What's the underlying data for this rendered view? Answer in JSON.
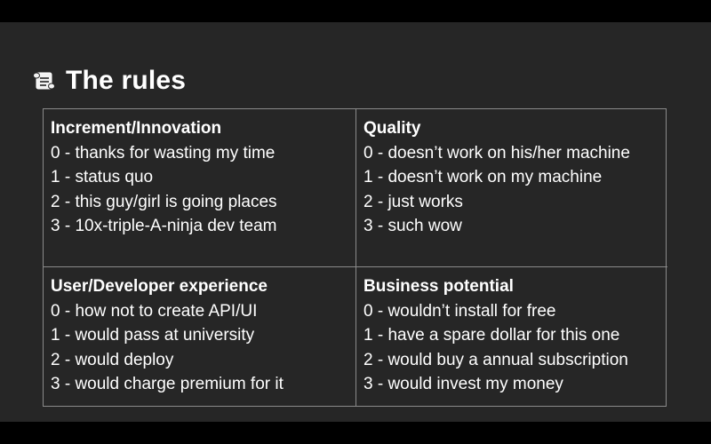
{
  "slide": {
    "title_icon": "scroll-icon",
    "title": "The rules",
    "colors": {
      "page_bg": "#000000",
      "slide_bg": "#262626",
      "text": "#ffffff",
      "grid_border": "#8a8a8a"
    },
    "cells": [
      {
        "heading": "Increment/Innovation",
        "lines": [
          "0 - thanks for wasting my time",
          "1 - status quo",
          "2 - this guy/girl is going places",
          "3 - 10x-triple-A-ninja dev team"
        ]
      },
      {
        "heading": "Quality",
        "lines": [
          "0 - doesn’t work on his/her machine",
          "1 - doesn’t work on my machine",
          "2 - just works",
          "3 - such wow"
        ]
      },
      {
        "heading": "User/Developer experience",
        "lines": [
          "0 - how not to create API/UI",
          "1 - would pass at university",
          "2 - would deploy",
          "3 - would charge premium for it"
        ]
      },
      {
        "heading": "Business potential",
        "lines": [
          "0 - wouldn’t install for free",
          "1 - have a spare dollar for this one",
          "2 - would buy a annual subscription",
          "3 - would invest my money"
        ]
      }
    ]
  }
}
